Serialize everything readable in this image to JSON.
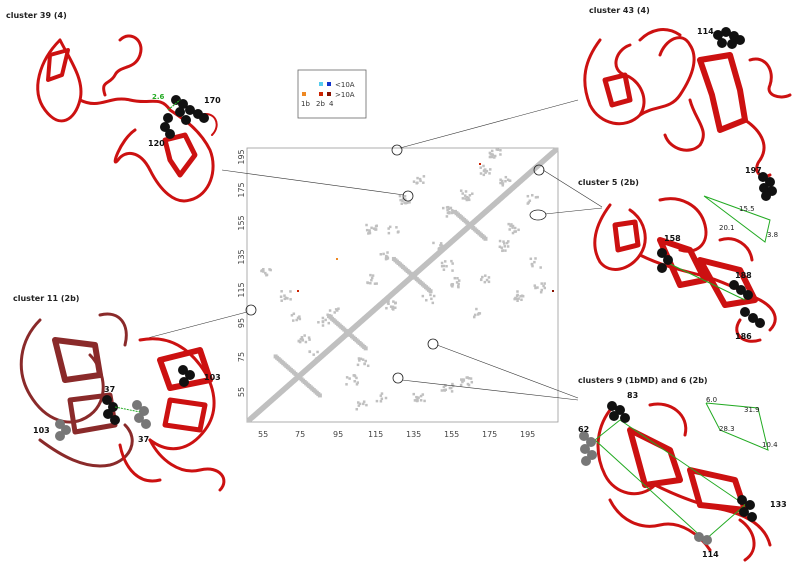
{
  "legend": {
    "row1": "<10A",
    "row2": ">10A",
    "col_labels": [
      "1b",
      "2b",
      "4"
    ],
    "colors": {
      "lt10_1b": "#55ccee",
      "lt10_2b": "#1133cc",
      "gt10_1b": "#ee8822",
      "gt10_2b": "#cc2200",
      "gt10_4": "#881100"
    }
  },
  "matrix": {
    "x_ticks": [
      "55",
      "75",
      "95",
      "115",
      "135",
      "155",
      "175",
      "195"
    ],
    "y_ticks": [
      "55",
      "75",
      "95",
      "115",
      "135",
      "155",
      "175",
      "195"
    ],
    "range": [
      35,
      198
    ],
    "contact_color": "#c0c0c0"
  },
  "panels": {
    "c39": {
      "title": "cluster 39 (4)",
      "labels": [
        "170",
        "120"
      ],
      "distance": "2.6"
    },
    "c43": {
      "title": "cluster 43 (4)",
      "labels": [
        "114",
        "197"
      ]
    },
    "c5": {
      "title": "cluster 5 (2b)",
      "labels": [
        "158",
        "188",
        "186"
      ],
      "triangle": [
        "15.5",
        "20.1",
        "3.8"
      ]
    },
    "c11": {
      "title": "cluster 11 (2b)",
      "labels": [
        "103",
        "37",
        "103",
        "37"
      ]
    },
    "c9": {
      "title": "clusters 9 (1bMD) and 6 (2b)",
      "labels": [
        "83",
        "62",
        "133",
        "114"
      ],
      "quad": [
        "6.0",
        "31.9",
        "28.3",
        "10.4"
      ]
    }
  },
  "colors": {
    "protein": "#cc1111",
    "protein_dark": "#8a2a2a",
    "sphere_black": "#111111",
    "sphere_grey": "#777777",
    "green": "#22aa22"
  }
}
